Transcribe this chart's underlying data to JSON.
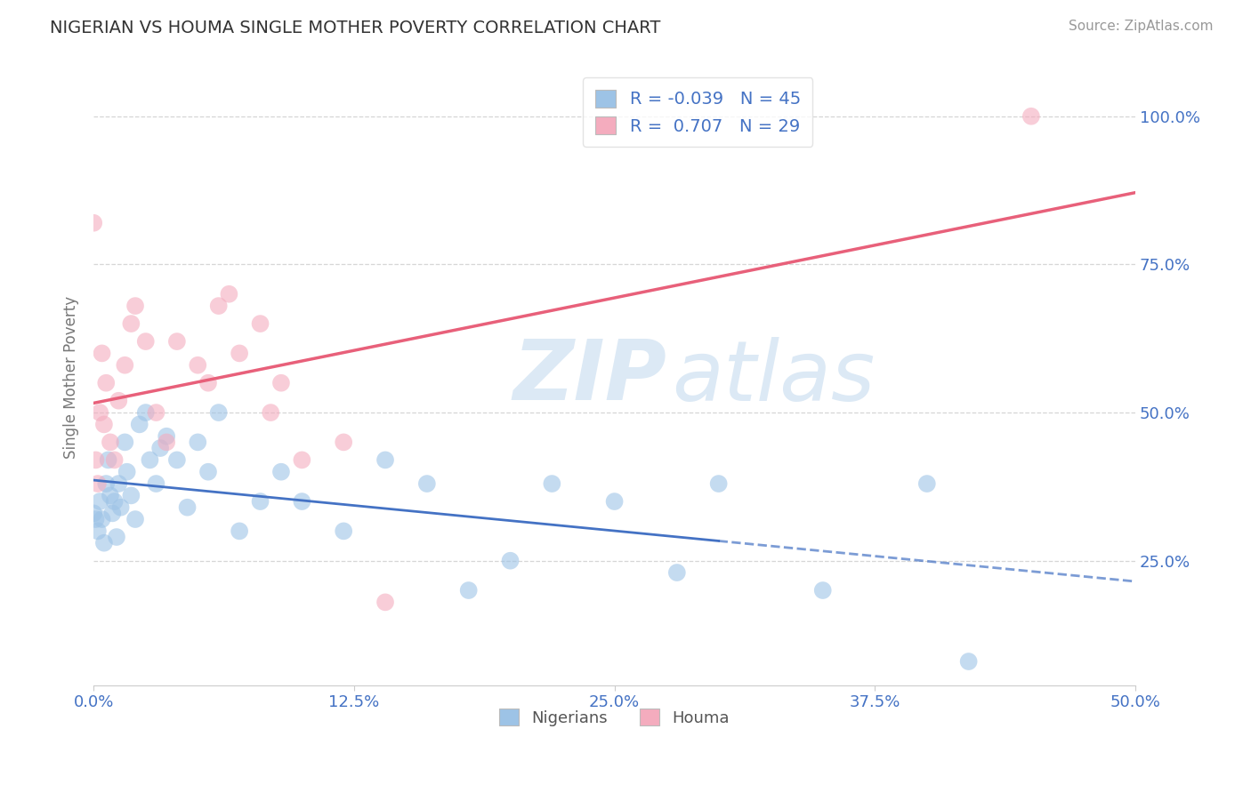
{
  "title": "NIGERIAN VS HOUMA SINGLE MOTHER POVERTY CORRELATION CHART",
  "source": "Source: ZipAtlas.com",
  "ylabel": "Single Mother Poverty",
  "xlim": [
    0.0,
    0.5
  ],
  "ylim": [
    0.04,
    1.08
  ],
  "xtick_labels": [
    "0.0%",
    "",
    "12.5%",
    "",
    "25.0%",
    "",
    "37.5%",
    "",
    "50.0%"
  ],
  "xtick_values": [
    0.0,
    0.0625,
    0.125,
    0.1875,
    0.25,
    0.3125,
    0.375,
    0.4375,
    0.5
  ],
  "ytick_labels": [
    "25.0%",
    "50.0%",
    "75.0%",
    "100.0%"
  ],
  "ytick_values": [
    0.25,
    0.5,
    0.75,
    1.0
  ],
  "nigerian_color": "#4472c4",
  "houma_color": "#e8607a",
  "nigerian_dot_color": "#9dc3e6",
  "houma_dot_color": "#f4acbe",
  "background_color": "#ffffff",
  "watermark_color": "#dce9f5",
  "R_nigerian": -0.039,
  "N_nigerian": 45,
  "R_houma": 0.707,
  "N_houma": 29,
  "nigerians_x": [
    0.0,
    0.001,
    0.002,
    0.003,
    0.004,
    0.005,
    0.006,
    0.007,
    0.008,
    0.009,
    0.01,
    0.011,
    0.012,
    0.013,
    0.015,
    0.016,
    0.018,
    0.02,
    0.022,
    0.025,
    0.027,
    0.03,
    0.032,
    0.035,
    0.04,
    0.045,
    0.05,
    0.055,
    0.06,
    0.07,
    0.08,
    0.09,
    0.1,
    0.12,
    0.14,
    0.16,
    0.18,
    0.2,
    0.22,
    0.25,
    0.28,
    0.3,
    0.35,
    0.4,
    0.42
  ],
  "nigerians_y": [
    0.33,
    0.32,
    0.3,
    0.35,
    0.32,
    0.28,
    0.38,
    0.42,
    0.36,
    0.33,
    0.35,
    0.29,
    0.38,
    0.34,
    0.45,
    0.4,
    0.36,
    0.32,
    0.48,
    0.5,
    0.42,
    0.38,
    0.44,
    0.46,
    0.42,
    0.34,
    0.45,
    0.4,
    0.5,
    0.3,
    0.35,
    0.4,
    0.35,
    0.3,
    0.42,
    0.38,
    0.2,
    0.25,
    0.38,
    0.35,
    0.23,
    0.38,
    0.2,
    0.38,
    0.08
  ],
  "houma_x": [
    0.0,
    0.001,
    0.002,
    0.003,
    0.004,
    0.005,
    0.006,
    0.008,
    0.01,
    0.012,
    0.015,
    0.018,
    0.02,
    0.025,
    0.03,
    0.035,
    0.04,
    0.05,
    0.055,
    0.06,
    0.065,
    0.07,
    0.08,
    0.085,
    0.09,
    0.1,
    0.12,
    0.14,
    0.45
  ],
  "houma_y": [
    0.82,
    0.42,
    0.38,
    0.5,
    0.6,
    0.48,
    0.55,
    0.45,
    0.42,
    0.52,
    0.58,
    0.65,
    0.68,
    0.62,
    0.5,
    0.45,
    0.62,
    0.58,
    0.55,
    0.68,
    0.7,
    0.6,
    0.65,
    0.5,
    0.55,
    0.42,
    0.45,
    0.18,
    1.0
  ]
}
